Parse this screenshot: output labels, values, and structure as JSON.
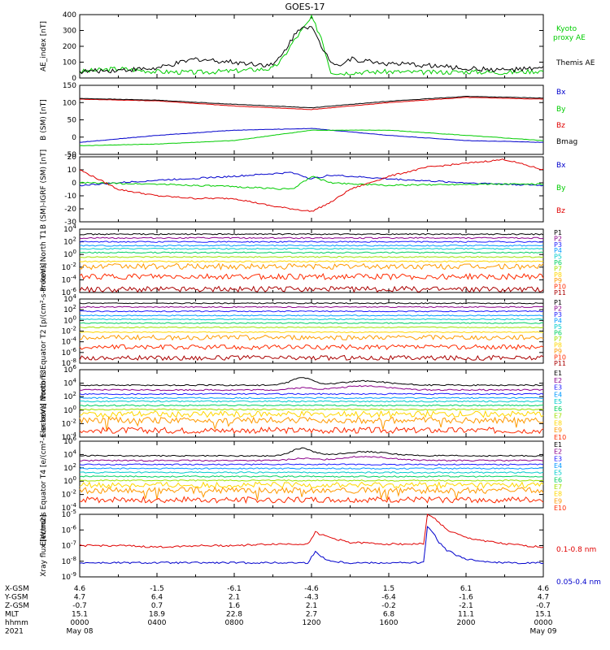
{
  "title": "GOES-17",
  "colors": {
    "black": "#000000",
    "red": "#e00000",
    "green": "#00cc00",
    "blue": "#0000cc",
    "ch": [
      "#000000",
      "#8b008b",
      "#1a1aff",
      "#0099ff",
      "#00cccc",
      "#00d060",
      "#a0e000",
      "#ffd700",
      "#ff9900",
      "#ff2a00",
      "#aa0000"
    ]
  },
  "chart_data": [
    {
      "type": "line",
      "id": "ae",
      "ylabel": "AE_index [nT]",
      "ylim": [
        0,
        400
      ],
      "yticks": [
        "0",
        "100",
        "200",
        "300",
        "400"
      ],
      "series": [
        {
          "name": "Kyoto proxy AE",
          "color": "#00cc00",
          "x": [
            0,
            2,
            4,
            6,
            8,
            10,
            10.5,
            11,
            11.5,
            12,
            12.5,
            13,
            13.5,
            14,
            16,
            18,
            20,
            22,
            24
          ],
          "values": [
            40,
            60,
            40,
            35,
            45,
            60,
            120,
            220,
            300,
            380,
            260,
            40,
            30,
            35,
            40,
            35,
            40,
            35,
            45
          ]
        },
        {
          "name": "Themis AE",
          "color": "#000000",
          "x": [
            0,
            2,
            4,
            6,
            8,
            10,
            10.5,
            11,
            11.5,
            12,
            12.5,
            13,
            13.5,
            14,
            16,
            18,
            20,
            22,
            24
          ],
          "values": [
            40,
            50,
            60,
            120,
            100,
            80,
            150,
            250,
            330,
            320,
            200,
            110,
            80,
            120,
            90,
            80,
            60,
            50,
            60
          ]
        }
      ]
    },
    {
      "type": "line",
      "id": "bsm",
      "ylabel": "B (SM) [nT]",
      "ylim": [
        -50,
        150
      ],
      "yticks": [
        "-50",
        "0",
        "50",
        "100",
        "150"
      ],
      "series": [
        {
          "name": "Bx",
          "color": "#0000cc",
          "x": [
            0,
            4,
            8,
            12,
            16,
            20,
            24
          ],
          "values": [
            -15,
            5,
            20,
            25,
            5,
            -10,
            -15
          ]
        },
        {
          "name": "By",
          "color": "#00cc00",
          "x": [
            0,
            4,
            8,
            12,
            16,
            20,
            24
          ],
          "values": [
            -25,
            -20,
            -10,
            20,
            20,
            5,
            -10
          ]
        },
        {
          "name": "Bz",
          "color": "#e00000",
          "x": [
            0,
            4,
            8,
            12,
            16,
            20,
            24
          ],
          "values": [
            110,
            105,
            90,
            80,
            100,
            115,
            110
          ]
        },
        {
          "name": "Bmag",
          "color": "#000000",
          "x": [
            0,
            4,
            8,
            12,
            16,
            20,
            24
          ],
          "values": [
            112,
            107,
            95,
            85,
            104,
            118,
            113
          ]
        }
      ]
    },
    {
      "type": "line",
      "id": "bdiff",
      "ylabel": "B (SM)-IGRF (SM) [nT]",
      "ylim": [
        -30,
        20
      ],
      "yticks": [
        "-30",
        "-20",
        "-10",
        "0",
        "10",
        "20"
      ],
      "series": [
        {
          "name": "Bx",
          "color": "#0000cc",
          "x": [
            0,
            4,
            8,
            11,
            12,
            13,
            16,
            20,
            24
          ],
          "values": [
            -2,
            2,
            5,
            8,
            3,
            6,
            3,
            0,
            -2
          ]
        },
        {
          "name": "By",
          "color": "#00cc00",
          "x": [
            0,
            4,
            8,
            11,
            12,
            13,
            16,
            20,
            24
          ],
          "values": [
            0,
            -1,
            -3,
            -5,
            5,
            0,
            -2,
            -1,
            -1
          ]
        },
        {
          "name": "Bz",
          "color": "#e00000",
          "x": [
            0,
            2,
            4,
            6,
            8,
            10,
            12,
            13,
            14,
            16,
            18,
            20,
            22,
            24
          ],
          "values": [
            10,
            -5,
            -10,
            -12,
            -12,
            -18,
            -22,
            -15,
            -5,
            5,
            12,
            15,
            18,
            10
          ]
        }
      ]
    },
    {
      "type": "line",
      "id": "pn",
      "log": true,
      "ylabel": "Protons North T1",
      "ylim": [
        -6,
        4
      ],
      "yticks": [
        "10^4",
        "10^2",
        "10^0",
        "10^-2",
        "10^-4",
        "10^-6"
      ],
      "channels": [
        "P1",
        "P2",
        "P3",
        "P4",
        "P5",
        "P6",
        "P7",
        "P8",
        "P9",
        "P10",
        "P11"
      ],
      "levels": [
        3.2,
        2.6,
        2.0,
        1.4,
        0.9,
        0.3,
        -0.4,
        -1.1,
        -1.9,
        -3.5,
        -5.5
      ],
      "series": [
        {
          "name": "P1",
          "values": [
            3.2,
            3.2,
            3.2,
            3.2
          ]
        },
        {
          "name": "P2",
          "values": [
            2.6,
            2.6,
            2.6,
            2.6
          ]
        },
        {
          "name": "P3",
          "values": [
            2.0,
            2.0,
            2.0,
            2.0
          ]
        },
        {
          "name": "P4",
          "values": [
            1.4,
            1.4,
            1.4,
            1.4
          ]
        },
        {
          "name": "P5",
          "values": [
            0.9,
            0.9,
            0.9,
            0.9
          ]
        },
        {
          "name": "P6",
          "values": [
            0.3,
            0.3,
            0.3,
            0.3
          ]
        },
        {
          "name": "P7",
          "values": [
            -0.4,
            -0.4,
            -0.4,
            -0.4
          ]
        },
        {
          "name": "P8",
          "values": [
            -1.1,
            -1.1,
            -1.1,
            -1.1
          ]
        },
        {
          "name": "P9",
          "values": [
            -1.9,
            -1.9,
            -1.9,
            -1.9
          ]
        },
        {
          "name": "P10",
          "values": [
            -3.5,
            -3.5,
            -3.5,
            -3.5
          ]
        },
        {
          "name": "P11",
          "values": [
            -5.5,
            -5.5,
            -5.5,
            -5.5
          ]
        }
      ]
    },
    {
      "type": "line",
      "id": "pe",
      "log": true,
      "ylabel": "Protons Equator T2 [p/(cm²-s-sr-keV)]",
      "ylim": [
        -8,
        4
      ],
      "yticks": [
        "10^4",
        "10^2",
        "10^0",
        "10^-2",
        "10^-4",
        "10^-6",
        "10^-8"
      ],
      "channels": [
        "P1",
        "P2",
        "P3",
        "P4",
        "P5",
        "P6",
        "P7",
        "P8",
        "P9",
        "P10",
        "P11"
      ],
      "levels": [
        3.2,
        2.5,
        1.7,
        0.9,
        0.2,
        -0.5,
        -1.3,
        -2.2,
        -3.2,
        -5.0,
        -7.0
      ],
      "series": [
        {
          "name": "P1",
          "values": [
            3.2,
            3.2,
            3.2,
            3.2
          ]
        },
        {
          "name": "P2",
          "values": [
            2.5,
            2.5,
            2.5,
            2.5
          ]
        },
        {
          "name": "P3",
          "values": [
            1.7,
            1.7,
            1.7,
            1.7
          ]
        },
        {
          "name": "P4",
          "values": [
            0.9,
            0.9,
            0.9,
            0.9
          ]
        },
        {
          "name": "P5",
          "values": [
            0.2,
            0.2,
            0.2,
            0.2
          ]
        },
        {
          "name": "P6",
          "values": [
            -0.5,
            -0.5,
            -0.5,
            -0.5
          ]
        },
        {
          "name": "P7",
          "values": [
            -1.3,
            -1.3,
            -1.3,
            -1.3
          ]
        },
        {
          "name": "P8",
          "values": [
            -2.2,
            -2.2,
            -2.2,
            -2.2
          ]
        },
        {
          "name": "P9",
          "values": [
            -3.2,
            -3.2,
            -3.2,
            -3.2
          ]
        },
        {
          "name": "P10",
          "values": [
            -5.0,
            -5.0,
            -5.0,
            -5.0
          ]
        },
        {
          "name": "P11",
          "values": [
            -7.0,
            -7.0,
            -7.0,
            -7.0
          ]
        }
      ]
    },
    {
      "type": "line",
      "id": "en",
      "log": true,
      "ylabel": "Electrons North T3",
      "ylim": [
        -4,
        6
      ],
      "yticks": [
        "10^6",
        "10^4",
        "10^2",
        "10^0",
        "10^-2",
        "10^-4"
      ],
      "channels": [
        "E1",
        "E2",
        "E3",
        "E4",
        "E5",
        "E6",
        "E7",
        "E8",
        "E9",
        "E10"
      ],
      "levels": [
        3.7,
        3.0,
        2.4,
        1.8,
        1.3,
        0.7,
        0.1,
        -0.6,
        -1.5,
        -3.0
      ],
      "series": [
        {
          "name": "E1",
          "values": [
            3.7,
            3.7,
            4.8,
            3.7
          ]
        },
        {
          "name": "E2",
          "values": [
            3.0,
            3.0,
            3.3,
            3.0
          ]
        },
        {
          "name": "E3",
          "values": [
            2.4,
            2.4,
            2.4,
            2.4
          ]
        },
        {
          "name": "E4",
          "values": [
            1.8,
            1.8,
            1.8,
            1.8
          ]
        },
        {
          "name": "E5",
          "values": [
            1.3,
            1.3,
            1.3,
            1.3
          ]
        },
        {
          "name": "E6",
          "values": [
            0.7,
            0.7,
            0.7,
            0.7
          ]
        },
        {
          "name": "E7",
          "values": [
            0.1,
            0.1,
            0.1,
            0.1
          ]
        },
        {
          "name": "E8",
          "values": [
            -0.6,
            -0.6,
            -0.6,
            -0.6
          ]
        },
        {
          "name": "E9",
          "values": [
            -1.5,
            -1.5,
            -1.5,
            -1.5
          ]
        },
        {
          "name": "E10",
          "values": [
            -3.0,
            -3.0,
            -3.0,
            -3.0
          ]
        }
      ]
    },
    {
      "type": "line",
      "id": "ee",
      "log": true,
      "ylabel": "Electrons Equator T4 [e/(cm²-s-sr-keV)]",
      "ylim": [
        -4,
        6
      ],
      "yticks": [
        "10^6",
        "10^4",
        "10^2",
        "10^0",
        "10^-2",
        "10^-4"
      ],
      "channels": [
        "E1",
        "E2",
        "E3",
        "E4",
        "E5",
        "E6",
        "E7",
        "E8",
        "E9",
        "E10"
      ],
      "levels": [
        3.8,
        3.1,
        2.5,
        1.9,
        1.3,
        0.7,
        0.1,
        -0.6,
        -1.4,
        -2.8
      ],
      "series": [
        {
          "name": "E1",
          "values": [
            3.8,
            3.8,
            4.8,
            3.8
          ]
        },
        {
          "name": "E2",
          "values": [
            3.1,
            3.1,
            3.4,
            3.1
          ]
        },
        {
          "name": "E3",
          "values": [
            2.5,
            2.5,
            2.5,
            2.5
          ]
        },
        {
          "name": "E4",
          "values": [
            1.9,
            1.9,
            1.9,
            1.9
          ]
        },
        {
          "name": "E5",
          "values": [
            1.3,
            1.3,
            1.3,
            1.3
          ]
        },
        {
          "name": "E6",
          "values": [
            0.7,
            0.7,
            0.7,
            0.7
          ]
        },
        {
          "name": "E7",
          "values": [
            0.1,
            0.1,
            0.1,
            0.1
          ]
        },
        {
          "name": "E8",
          "values": [
            -0.6,
            -0.6,
            -0.6,
            -0.6
          ]
        },
        {
          "name": "E9",
          "values": [
            -1.4,
            -1.4,
            -1.4,
            -1.4
          ]
        },
        {
          "name": "E10",
          "values": [
            -2.8,
            -2.8,
            -2.8,
            -2.8
          ]
        }
      ]
    },
    {
      "type": "line",
      "id": "xray",
      "log": true,
      "ylabel": "Xray flux [W/m2]",
      "ylim": [
        -9,
        -5
      ],
      "yticks": [
        "10^-5",
        "10^-6",
        "10^-7",
        "10^-8",
        "10^-9"
      ],
      "series": [
        {
          "name": "0.1-0.8 nm",
          "color": "#e00000",
          "x": [
            0,
            2,
            4,
            6,
            8,
            10,
            11.8,
            12.2,
            12.5,
            13,
            14,
            16,
            17.8,
            18.0,
            18.3,
            18.6,
            19,
            20,
            22,
            24
          ],
          "values": [
            -7.0,
            -7.0,
            -7.1,
            -7.0,
            -7.0,
            -6.9,
            -6.9,
            -6.15,
            -6.3,
            -6.5,
            -6.8,
            -6.9,
            -6.9,
            -5.05,
            -5.2,
            -5.5,
            -6.0,
            -6.5,
            -6.9,
            -7.1
          ]
        },
        {
          "name": "0.05-0.4 nm",
          "color": "#0000cc",
          "x": [
            0,
            2,
            4,
            6,
            8,
            10,
            11.8,
            12.2,
            12.5,
            13,
            14,
            16,
            17.8,
            18.0,
            18.3,
            18.6,
            19,
            20,
            22,
            24
          ],
          "values": [
            -8.1,
            -8.1,
            -8.1,
            -8.1,
            -8.1,
            -8.1,
            -8.1,
            -7.4,
            -7.7,
            -8.0,
            -8.1,
            -8.1,
            -8.1,
            -5.8,
            -6.2,
            -6.8,
            -7.3,
            -7.9,
            -8.1,
            -8.1
          ]
        }
      ]
    }
  ],
  "footer": {
    "labels": [
      "X-GSM",
      "Y-GSM",
      "Z-GSM",
      "MLT",
      "hhmm",
      "2021"
    ],
    "columns": [
      [
        "4.6",
        "4.7",
        "-0.7",
        "15.1",
        "0000",
        "May 08"
      ],
      [
        "-1.5",
        "6.4",
        "0.7",
        "18.9",
        "0400",
        ""
      ],
      [
        "-6.1",
        "2.1",
        "1.6",
        "22.8",
        "0800",
        ""
      ],
      [
        "-4.6",
        "-4.3",
        "2.1",
        "2.7",
        "1200",
        ""
      ],
      [
        "1.5",
        "-6.4",
        "-0.2",
        "6.8",
        "1600",
        ""
      ],
      [
        "6.1",
        "-1.6",
        "-2.1",
        "11.1",
        "2000",
        ""
      ],
      [
        "4.6",
        "4.7",
        "-0.7",
        "15.1",
        "0000",
        "May 09"
      ]
    ]
  }
}
